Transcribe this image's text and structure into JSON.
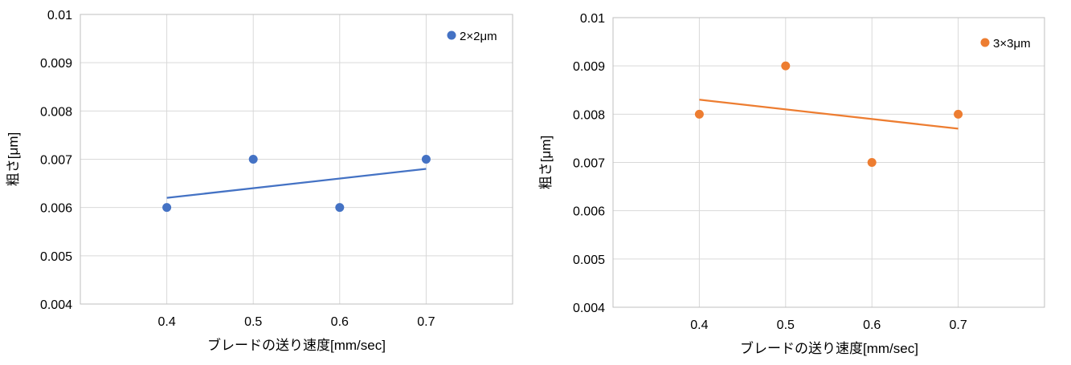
{
  "chart_data": [
    {
      "type": "scatter",
      "xlabel": "ブレードの送り速度[mm/sec]",
      "ylabel": "粗さ[μm]",
      "x_ticks": [
        "0.4",
        "0.5",
        "0.6",
        "0.7"
      ],
      "y_ticks": [
        "0.004",
        "0.005",
        "0.006",
        "0.007",
        "0.008",
        "0.009",
        "0.01"
      ],
      "xlim": [
        0.3,
        0.8
      ],
      "ylim": [
        0.004,
        0.01
      ],
      "grid": true,
      "legend_position": "top-right",
      "series": [
        {
          "name": "2×2μm",
          "color": "#4472C4",
          "x": [
            0.4,
            0.5,
            0.6,
            0.7
          ],
          "y": [
            0.006,
            0.007,
            0.006,
            0.007
          ],
          "trendline": {
            "type": "linear",
            "x": [
              0.4,
              0.7
            ],
            "y": [
              0.0062,
              0.0068
            ]
          }
        }
      ]
    },
    {
      "type": "scatter",
      "xlabel": "ブレードの送り速度[mm/sec]",
      "ylabel": "粗さ[μm]",
      "x_ticks": [
        "0.4",
        "0.5",
        "0.6",
        "0.7"
      ],
      "y_ticks": [
        "0.004",
        "0.005",
        "0.006",
        "0.007",
        "0.008",
        "0.009",
        "0.01"
      ],
      "xlim": [
        0.3,
        0.8
      ],
      "ylim": [
        0.004,
        0.01
      ],
      "grid": true,
      "legend_position": "top-right",
      "series": [
        {
          "name": "3×3μm",
          "color": "#ED7D31",
          "x": [
            0.4,
            0.5,
            0.6,
            0.7
          ],
          "y": [
            0.008,
            0.009,
            0.007,
            0.008
          ],
          "trendline": {
            "type": "linear",
            "x": [
              0.4,
              0.7
            ],
            "y": [
              0.0083,
              0.0077
            ]
          }
        }
      ]
    }
  ]
}
